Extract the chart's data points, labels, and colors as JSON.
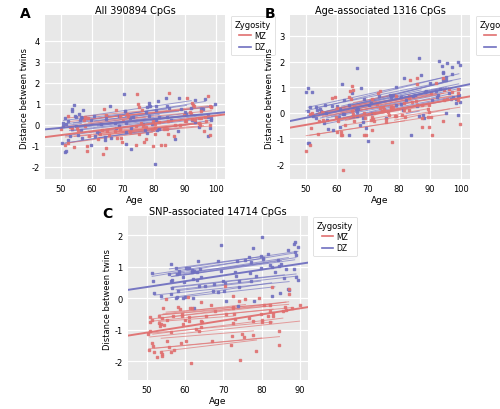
{
  "panel_A": {
    "title": "All 390894 CpGs",
    "label": "A",
    "xlim": [
      45,
      103
    ],
    "ylim": [
      -2.6,
      5.2
    ],
    "yticks": [
      -2,
      -1,
      0,
      1,
      2,
      3,
      4
    ],
    "xticks": [
      50,
      60,
      70,
      80,
      90,
      100
    ]
  },
  "panel_B": {
    "title": "Age-associated 1316 CpGs",
    "label": "B",
    "xlim": [
      45,
      103
    ],
    "ylim": [
      -2.6,
      3.8
    ],
    "yticks": [
      -2,
      -1,
      0,
      1,
      2,
      3
    ],
    "xticks": [
      50,
      60,
      70,
      80,
      90,
      100
    ]
  },
  "panel_C": {
    "title": "SNP-associated 14714 CpGs",
    "label": "C",
    "xlim": [
      45,
      92
    ],
    "ylim": [
      -2.6,
      2.6
    ],
    "yticks": [
      -2,
      -1,
      0,
      1,
      2
    ],
    "xticks": [
      50,
      60,
      70,
      80,
      90
    ]
  },
  "mz_color": "#E07070",
  "dz_color": "#7070C0",
  "bg_color": "#E8E8E8",
  "grid_color": "white",
  "ylabel": "Distance between twins",
  "xlabel": "Age",
  "legend_title": "Zygosity",
  "legend_mz": "MZ",
  "legend_dz": "DZ"
}
